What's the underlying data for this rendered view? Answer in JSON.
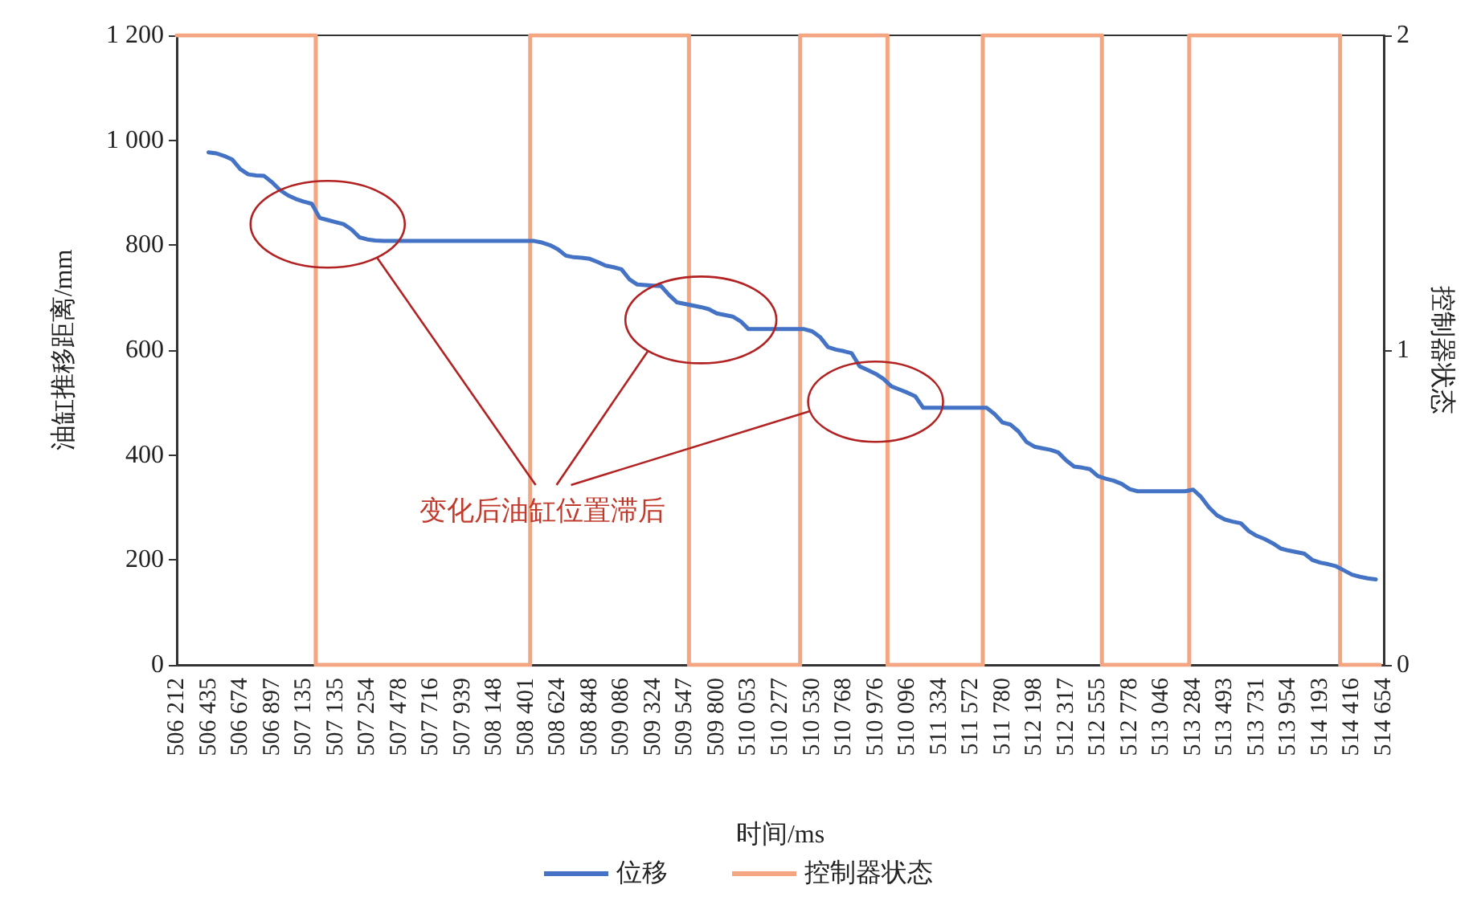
{
  "chart_data": {
    "type": "line",
    "xlabel": "时间/ms",
    "ylabel": "油缸推移距离/mm",
    "y2label": "控制器状态",
    "categories": [
      "506 212",
      null,
      null,
      null,
      "506 435",
      null,
      null,
      null,
      "506 674",
      null,
      null,
      null,
      "506 897",
      null,
      null,
      null,
      "507 135",
      null,
      null,
      null,
      "507 135",
      null,
      null,
      null,
      "507 254",
      null,
      null,
      null,
      "507 478",
      null,
      null,
      null,
      "507 716",
      null,
      null,
      null,
      "507 939",
      null,
      null,
      null,
      "508 148",
      null,
      null,
      null,
      "508 401",
      null,
      null,
      null,
      "508 624",
      null,
      null,
      null,
      "508 848",
      null,
      null,
      null,
      "509 086",
      null,
      null,
      null,
      "509 324",
      null,
      null,
      null,
      "509 547",
      null,
      null,
      null,
      "509 800",
      null,
      null,
      null,
      "510 053",
      null,
      null,
      null,
      "510 277",
      null,
      null,
      null,
      "510 530",
      null,
      null,
      null,
      "510 768",
      null,
      null,
      null,
      "510 976",
      null,
      null,
      null,
      "510 096",
      null,
      null,
      null,
      "511 334",
      null,
      null,
      null,
      "511 572",
      null,
      null,
      null,
      "511 780",
      null,
      null,
      null,
      "512 198",
      null,
      null,
      null,
      "512 317",
      null,
      null,
      null,
      "512 555",
      null,
      null,
      null,
      "512 778",
      null,
      null,
      null,
      "513 046",
      null,
      null,
      null,
      "513 284",
      null,
      null,
      null,
      "513 493",
      null,
      null,
      null,
      "513 731",
      null,
      null,
      null,
      "513 954",
      null,
      null,
      null,
      "514 193",
      null,
      null,
      null,
      "514 416",
      null,
      null,
      null,
      "514 654"
    ],
    "series": [
      {
        "name": "位移",
        "color": "#4472c4",
        "values": [
          null,
          null,
          null,
          null,
          977,
          975,
          970,
          963,
          945,
          935,
          933,
          932,
          920,
          905,
          895,
          888,
          883,
          879,
          852,
          848,
          844,
          840,
          830,
          815,
          811,
          809,
          808,
          808,
          808,
          808,
          808,
          808,
          808,
          808,
          808,
          808,
          808,
          808,
          808,
          808,
          808,
          808,
          808,
          808,
          808,
          808,
          805,
          800,
          792,
          780,
          777,
          776,
          774,
          768,
          761,
          758,
          754,
          735,
          725,
          724,
          723,
          722,
          705,
          691,
          688,
          685,
          682,
          678,
          670,
          667,
          664,
          655,
          640,
          640,
          640,
          640,
          640,
          640,
          640,
          640,
          636,
          625,
          606,
          601,
          598,
          594,
          569,
          562,
          555,
          545,
          531,
          525,
          519,
          512,
          490,
          490,
          490,
          490,
          490,
          490,
          490,
          490,
          490,
          478,
          462,
          458,
          445,
          425,
          416,
          413,
          410,
          405,
          390,
          378,
          376,
          373,
          360,
          355,
          351,
          345,
          335,
          331,
          331,
          331,
          331,
          331,
          331,
          331,
          334,
          320,
          300,
          285,
          277,
          273,
          270,
          255,
          246,
          240,
          232,
          222,
          218,
          215,
          212,
          200,
          195,
          192,
          188,
          180,
          172,
          168,
          165,
          163,
          null
        ]
      },
      {
        "name": "控制器状态",
        "type": "step",
        "axis": "y2",
        "color": "#f4a582",
        "values": [
          2,
          2,
          2,
          2,
          2,
          2,
          2,
          2,
          2,
          2,
          2,
          2,
          2,
          2,
          2,
          2,
          2,
          2,
          0,
          0,
          0,
          0,
          0,
          0,
          0,
          0,
          0,
          0,
          0,
          0,
          0,
          0,
          0,
          0,
          0,
          0,
          0,
          0,
          0,
          0,
          0,
          0,
          0,
          0,
          0,
          2,
          2,
          2,
          2,
          2,
          2,
          2,
          2,
          2,
          2,
          2,
          2,
          2,
          2,
          2,
          2,
          2,
          2,
          2,
          2,
          0,
          0,
          0,
          0,
          0,
          0,
          0,
          0,
          0,
          0,
          0,
          0,
          0,
          0,
          2,
          2,
          2,
          2,
          2,
          2,
          2,
          2,
          2,
          2,
          2,
          0,
          0,
          0,
          0,
          0,
          0,
          0,
          0,
          0,
          0,
          0,
          0,
          2,
          2,
          2,
          2,
          2,
          2,
          2,
          2,
          2,
          2,
          2,
          2,
          2,
          2,
          2,
          0,
          0,
          0,
          0,
          0,
          0,
          0,
          0,
          0,
          0,
          0,
          2,
          2,
          2,
          2,
          2,
          2,
          2,
          2,
          2,
          2,
          2,
          2,
          2,
          2,
          2,
          2,
          2,
          2,
          2,
          0,
          0,
          0,
          0,
          0,
          null
        ]
      }
    ],
    "ylim": [
      0,
      1200
    ],
    "yticks": [
      0,
      200,
      400,
      600,
      800,
      {
        "value": 1000,
        "label": "1 000"
      },
      {
        "value": 1200,
        "label": "1 200"
      }
    ],
    "y2lim": [
      0,
      2
    ],
    "y2ticks": [
      0,
      1,
      2
    ],
    "annotations": [
      "变化后油缸位置滞后"
    ],
    "legend": "bottom",
    "grid": false,
    "marker": "none",
    "line_style": "solid"
  }
}
